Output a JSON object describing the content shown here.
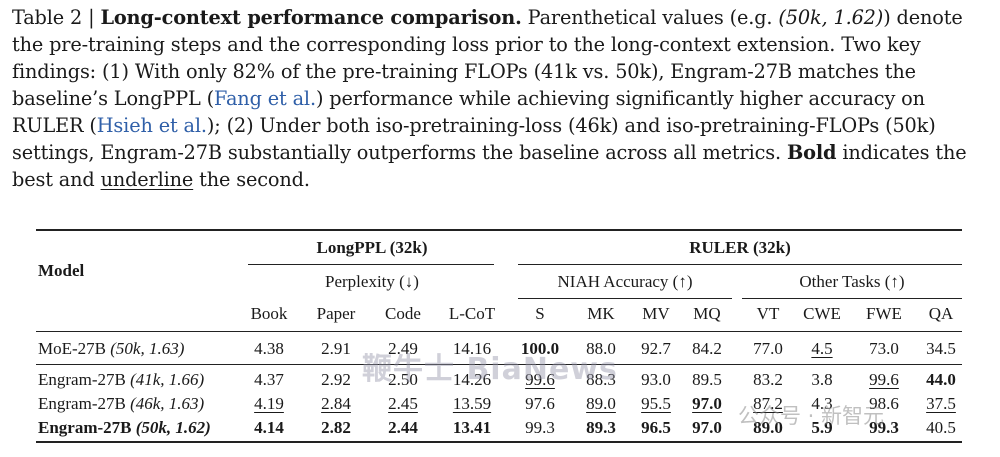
{
  "caption": {
    "label": "Table 2 |",
    "title": "Long-context performance comparison.",
    "p1": " Parenthetical values (e.g. ",
    "example": "(50k, 1.62)",
    "p2": ") denote the pre-training steps and the corresponding loss prior to the long-context extension. Two key findings: (1) With only 82% of the pre-training FLOPs (41k vs. 50k), Engram-27B matches the baseline’s LongPPL (",
    "cite1": "Fang et al.",
    "p3": ") performance while achieving significantly higher accuracy on RULER (",
    "cite2": "Hsieh et al.",
    "p4": "); (2) Under both iso-pretraining-loss (46k) and iso-pretraining-FLOPs (50k) settings, Engram-27B substantially outperforms the baseline across all metrics. ",
    "bold_word": "Bold",
    "p5": " indicates the best and ",
    "underline_word": "underline",
    "p6": " the second."
  },
  "table": {
    "model_header": "Model",
    "group1": "LongPPL (32k)",
    "group2": "RULER (32k)",
    "sub1": "Perplexity (↓)",
    "sub2": "NIAH Accuracy (↑)",
    "sub3": "Other Tasks (↑)",
    "columns": [
      "Book",
      "Paper",
      "Code",
      "L-CoT",
      "S",
      "MK",
      "MV",
      "MQ",
      "VT",
      "CWE",
      "FWE",
      "QA"
    ],
    "rows": [
      {
        "name": "MoE-27B",
        "note": "(50k, 1.63)",
        "values": [
          "4.38",
          "2.91",
          "2.49",
          "14.16",
          "100.0",
          "88.0",
          "92.7",
          "84.2",
          "77.0",
          "4.5",
          "73.0",
          "34.5"
        ]
      },
      {
        "name": "Engram-27B",
        "note": "(41k, 1.66)",
        "values": [
          "4.37",
          "2.92",
          "2.50",
          "14.26",
          "99.6",
          "88.3",
          "93.0",
          "89.5",
          "83.2",
          "3.8",
          "99.6",
          "44.0"
        ]
      },
      {
        "name": "Engram-27B",
        "note": "(46k, 1.63)",
        "values": [
          "4.19",
          "2.84",
          "2.45",
          "13.59",
          "97.6",
          "89.0",
          "95.5",
          "97.0",
          "87.2",
          "4.3",
          "98.6",
          "37.5"
        ]
      },
      {
        "name": "Engram-27B",
        "note": "(50k, 1.62)",
        "values": [
          "4.14",
          "2.82",
          "2.44",
          "13.41",
          "99.3",
          "89.3",
          "96.5",
          "97.0",
          "89.0",
          "5.9",
          "99.3",
          "40.5"
        ]
      }
    ]
  },
  "watermarks": {
    "center": "鞭牛士 BiaNews",
    "corner": "公众号 · 新智元"
  }
}
